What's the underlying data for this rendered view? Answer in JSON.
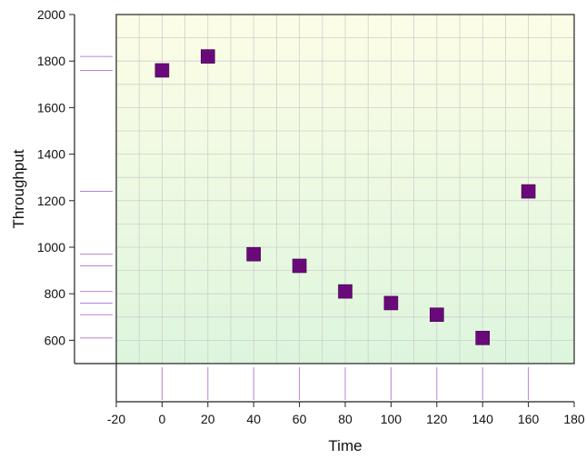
{
  "chart_data": {
    "type": "scatter",
    "title": "",
    "xlabel": "Time",
    "ylabel": "Throughput",
    "xlim": [
      -20,
      180
    ],
    "ylim": [
      500,
      2000
    ],
    "x_ticks": [
      -20,
      0,
      20,
      40,
      60,
      80,
      100,
      120,
      140,
      160,
      180
    ],
    "y_ticks": [
      600,
      800,
      1000,
      1200,
      1400,
      1600,
      1800,
      2000
    ],
    "grid": true,
    "marginal_rug": {
      "x": true,
      "y": true,
      "color": "#b484d4"
    },
    "background_gradient": {
      "top": "#fdfde6",
      "bottom": "#ddf5dd"
    },
    "series": [
      {
        "marker": "square",
        "color": "#6a0a7a",
        "x": [
          0,
          20,
          40,
          60,
          80,
          100,
          120,
          140,
          160
        ],
        "y": [
          1760,
          1820,
          970,
          920,
          810,
          760,
          710,
          610,
          1240
        ]
      }
    ]
  }
}
